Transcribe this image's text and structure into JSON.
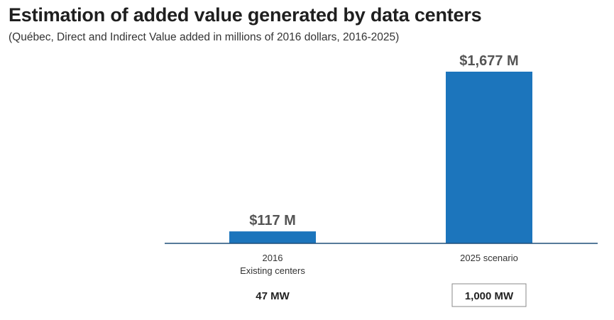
{
  "chart_data": {
    "type": "bar",
    "title": "Estimation of added value generated by data centers",
    "subtitle": "(Québec, Direct and Indirect Value added in millions of 2016 dollars, 2016-2025)",
    "categories": [
      {
        "line1": "2016",
        "line2": "Existing centers"
      },
      {
        "line1": "2025 scenario",
        "line2": ""
      }
    ],
    "values": [
      117,
      1677
    ],
    "value_labels": [
      "$117 M",
      "$1,677 M"
    ],
    "capacity_labels": [
      "47 MW",
      "1,000 MW"
    ],
    "capacity_boxed": [
      false,
      true
    ],
    "bar_color": "#1c75bc",
    "axis_color": "#1f4e79",
    "ylim": [
      0,
      1677
    ],
    "xlabel": "",
    "ylabel": "",
    "grid": false
  }
}
